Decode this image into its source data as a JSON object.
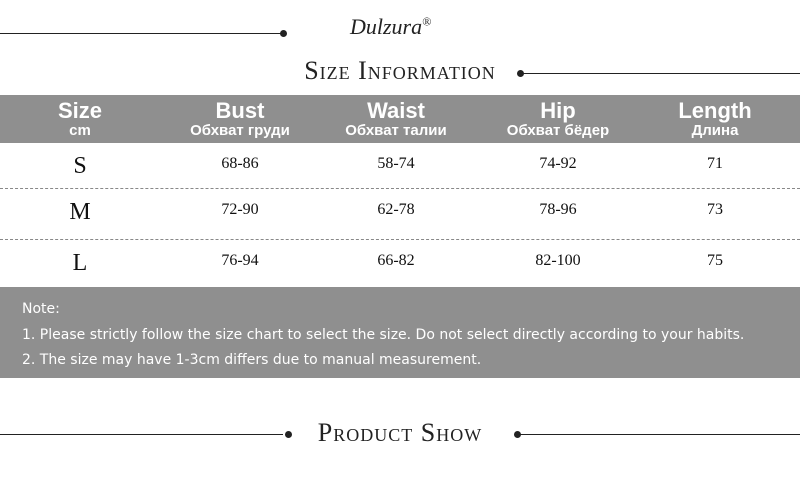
{
  "header": {
    "brand": "Dulzura",
    "brand_mark": "®",
    "title": "Size Information"
  },
  "table": {
    "columns": [
      {
        "label": "Size",
        "sublabel": "cm"
      },
      {
        "label": "Bust",
        "sublabel": "Обхват груди"
      },
      {
        "label": "Waist",
        "sublabel": "Обхват талии"
      },
      {
        "label": "Hip",
        "sublabel": "Обхват бёдер"
      },
      {
        "label": "Length",
        "sublabel": "Длина"
      }
    ],
    "rows": [
      [
        "S",
        "68-86",
        "58-74",
        "74-92",
        "71"
      ],
      [
        "M",
        "72-90",
        "62-78",
        "78-96",
        "73"
      ],
      [
        "L",
        "76-94",
        "66-82",
        "82-100",
        "75"
      ]
    ]
  },
  "note": {
    "heading": "Note:",
    "items": [
      "1. Please strictly follow the size chart to select the size. Do not select directly according to your habits.",
      "2. The size may have 1-3cm differs due to manual measurement."
    ]
  },
  "section": {
    "title": "Product Show"
  }
}
